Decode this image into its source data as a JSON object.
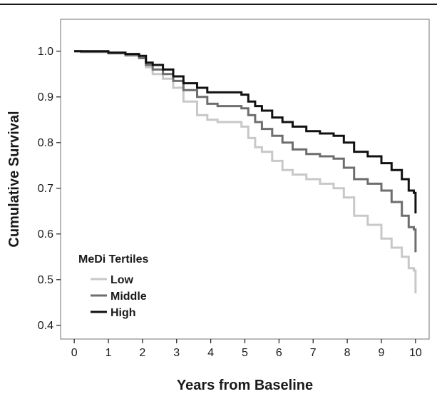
{
  "chart_data": {
    "type": "line",
    "step": true,
    "xlabel": "Years from Baseline",
    "ylabel": "Cumulative Survival",
    "xlim": [
      -0.4,
      10.4
    ],
    "ylim": [
      0.37,
      1.07
    ],
    "xticks": [
      0,
      1,
      2,
      3,
      4,
      5,
      6,
      7,
      8,
      9,
      10
    ],
    "yticks": [
      0.4,
      0.5,
      0.6,
      0.7,
      0.8,
      0.9,
      1.0
    ],
    "ytick_labels": [
      "0.4",
      "0.5",
      "0.6",
      "0.7",
      "0.8",
      "0.9",
      "1.0"
    ],
    "grid": false,
    "legend": {
      "title": "MeDi Tertiles",
      "position": "bottom-left"
    },
    "series": [
      {
        "name": "Low",
        "color": "#c8c8c8",
        "x": [
          0,
          0.2,
          1,
          1.5,
          1.9,
          2.1,
          2.3,
          2.6,
          2.9,
          3.2,
          3.6,
          3.9,
          4.2,
          4.5,
          4.9,
          5.1,
          5.3,
          5.5,
          5.8,
          6.1,
          6.4,
          6.8,
          7.2,
          7.6,
          7.9,
          8.2,
          8.6,
          9.0,
          9.3,
          9.6,
          9.8,
          9.95,
          10.0
        ],
        "y": [
          1.0,
          0.998,
          0.995,
          0.99,
          0.985,
          0.965,
          0.95,
          0.94,
          0.92,
          0.89,
          0.86,
          0.85,
          0.845,
          0.845,
          0.835,
          0.81,
          0.79,
          0.78,
          0.76,
          0.74,
          0.73,
          0.72,
          0.71,
          0.7,
          0.68,
          0.64,
          0.62,
          0.59,
          0.57,
          0.55,
          0.525,
          0.52,
          0.47
        ]
      },
      {
        "name": "Middle",
        "color": "#6e6e6e",
        "x": [
          0,
          0.2,
          1,
          1.5,
          1.9,
          2.1,
          2.3,
          2.6,
          2.9,
          3.2,
          3.6,
          3.9,
          4.2,
          4.5,
          4.9,
          5.1,
          5.3,
          5.5,
          5.8,
          6.1,
          6.4,
          6.8,
          7.2,
          7.6,
          7.9,
          8.2,
          8.6,
          9.0,
          9.3,
          9.6,
          9.8,
          9.95,
          10.0
        ],
        "y": [
          1.0,
          0.999,
          0.996,
          0.992,
          0.985,
          0.97,
          0.96,
          0.95,
          0.935,
          0.915,
          0.9,
          0.885,
          0.88,
          0.88,
          0.875,
          0.86,
          0.845,
          0.83,
          0.815,
          0.8,
          0.785,
          0.775,
          0.77,
          0.765,
          0.745,
          0.72,
          0.71,
          0.695,
          0.67,
          0.64,
          0.615,
          0.61,
          0.56
        ]
      },
      {
        "name": "High",
        "color": "#111111",
        "x": [
          0,
          0.2,
          1,
          1.5,
          1.9,
          2.1,
          2.3,
          2.6,
          2.9,
          3.2,
          3.6,
          3.9,
          4.2,
          4.5,
          4.9,
          5.1,
          5.3,
          5.5,
          5.8,
          6.1,
          6.4,
          6.8,
          7.2,
          7.6,
          7.9,
          8.2,
          8.6,
          9.0,
          9.3,
          9.6,
          9.8,
          9.95,
          10.0
        ],
        "y": [
          1.0,
          1.0,
          0.997,
          0.994,
          0.99,
          0.975,
          0.97,
          0.96,
          0.945,
          0.93,
          0.92,
          0.91,
          0.91,
          0.91,
          0.905,
          0.89,
          0.88,
          0.87,
          0.855,
          0.845,
          0.835,
          0.825,
          0.82,
          0.815,
          0.8,
          0.78,
          0.77,
          0.755,
          0.74,
          0.72,
          0.695,
          0.69,
          0.645
        ]
      }
    ]
  }
}
